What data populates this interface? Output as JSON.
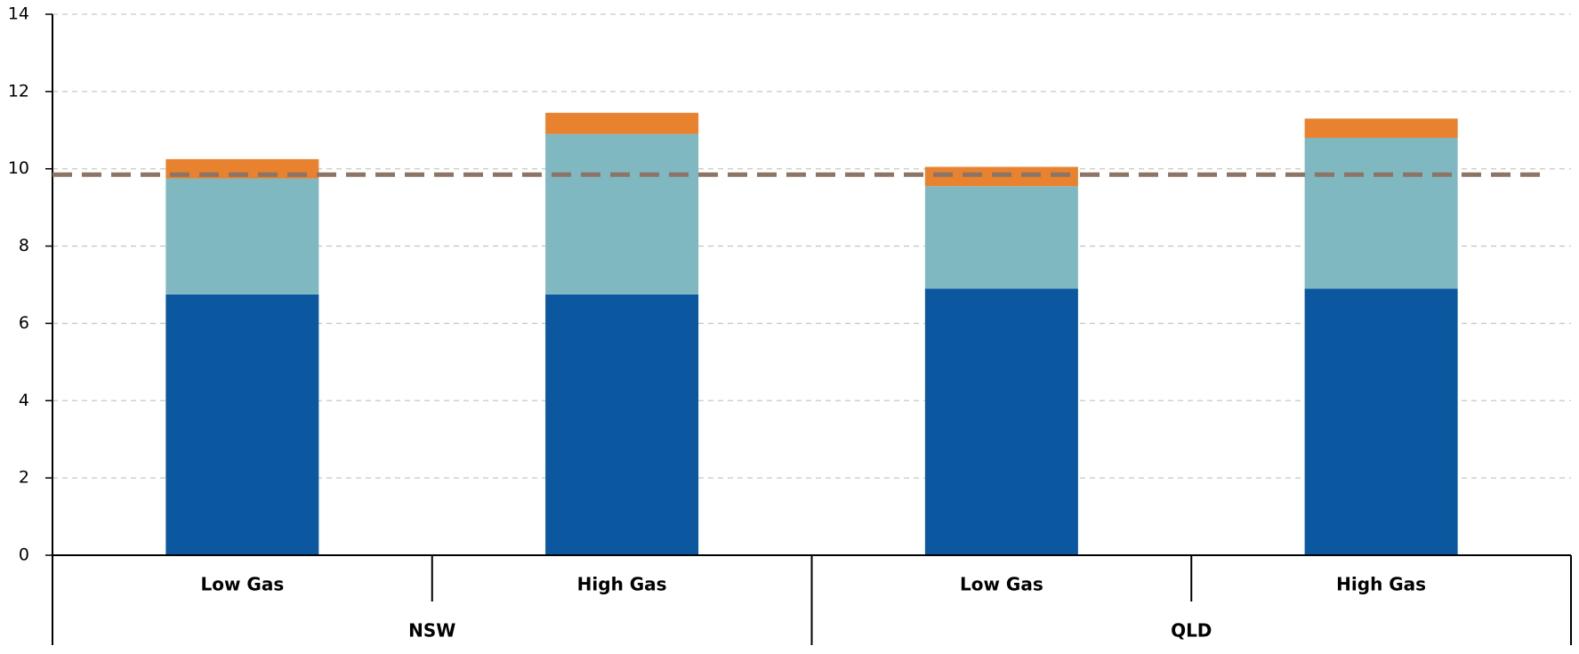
{
  "chart_data": {
    "type": "stacked_bar",
    "categories": [
      "Low Gas",
      "High Gas",
      "Low Gas",
      "High Gas"
    ],
    "groups": [
      "NSW",
      "QLD"
    ],
    "series": [
      {
        "color": "#0b57a0",
        "values": [
          6.75,
          6.75,
          6.9,
          6.9
        ]
      },
      {
        "color": "#80b8c2",
        "values": [
          3.0,
          4.15,
          2.65,
          3.9
        ]
      },
      {
        "color": "#e8822f",
        "values": [
          0.5,
          0.55,
          0.5,
          0.5
        ]
      }
    ],
    "reference_line": {
      "value": 9.85,
      "color": "#8c7566"
    },
    "ylim": [
      0,
      14
    ],
    "yticks": [
      0,
      2,
      4,
      6,
      8,
      10,
      12,
      14
    ],
    "grid": true
  }
}
